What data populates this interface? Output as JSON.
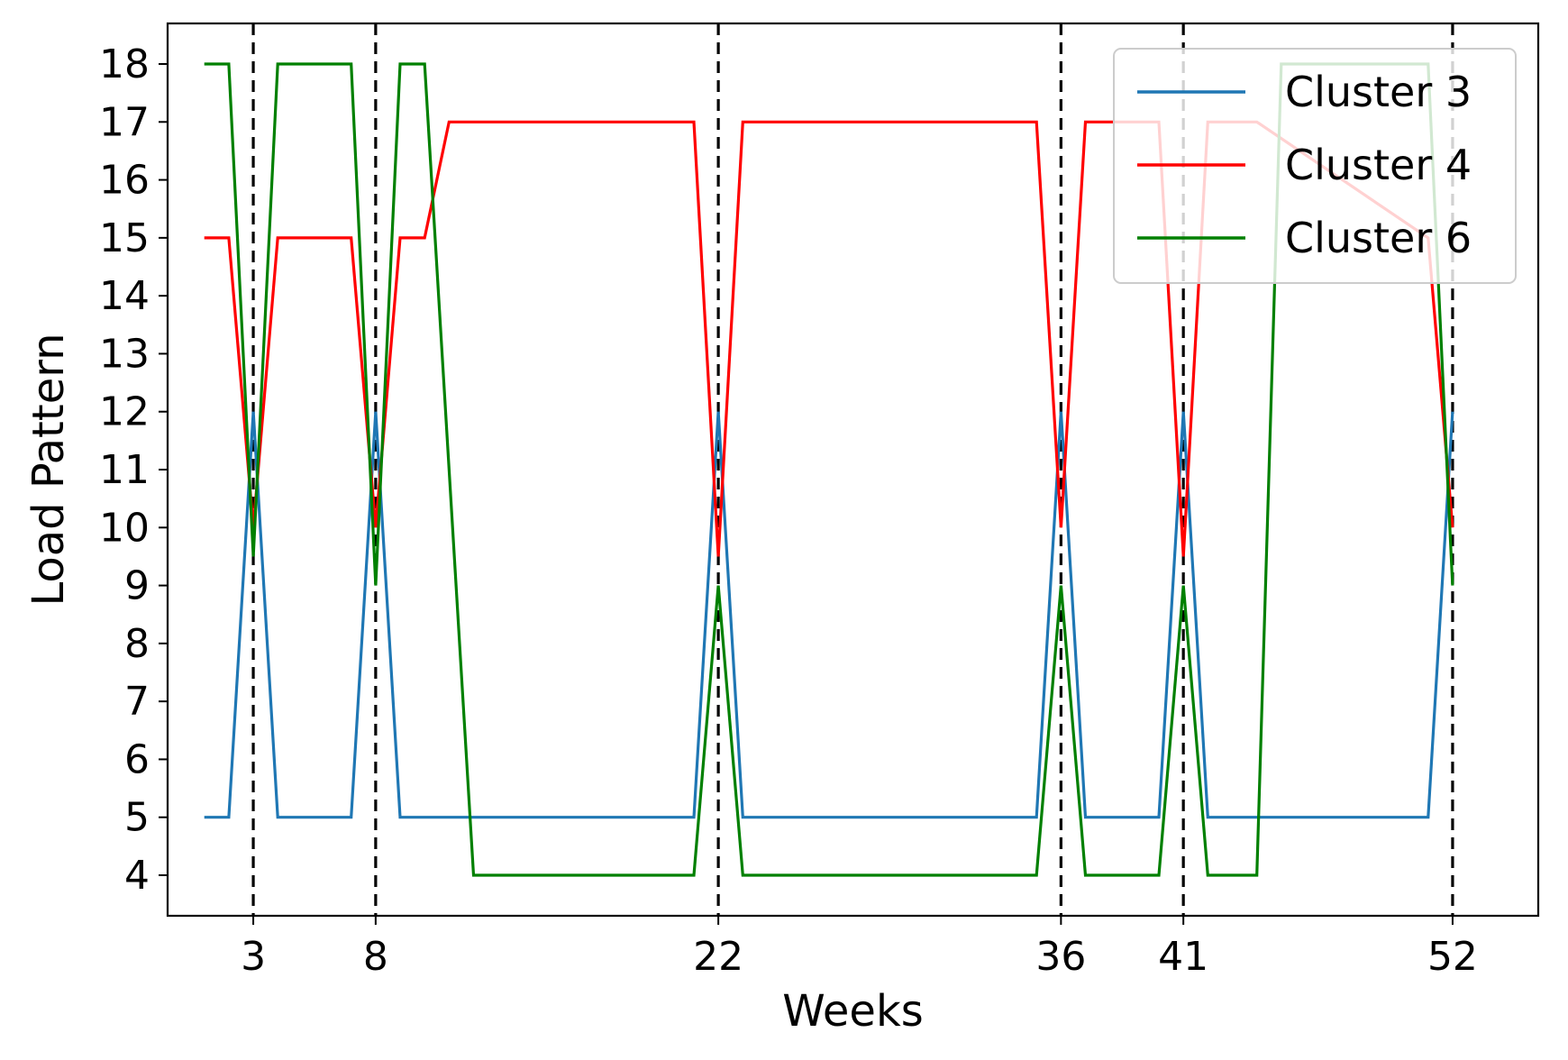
{
  "chart_data": {
    "type": "line",
    "title": "",
    "xlabel": "Weeks",
    "ylabel": "Load Pattern",
    "xlim": [
      -0.5,
      55.5
    ],
    "ylim": [
      3.3,
      18.7
    ],
    "x_ticks": [
      3,
      8,
      22,
      36,
      41,
      52
    ],
    "y_ticks": [
      4,
      5,
      6,
      7,
      8,
      9,
      10,
      11,
      12,
      13,
      14,
      15,
      16,
      17,
      18
    ],
    "vlines": [
      3,
      8,
      22,
      36,
      41,
      52
    ],
    "legend_position": "top-right",
    "grid": false,
    "series": [
      {
        "name": "Cluster 3",
        "color": "#1f77b4",
        "x": [
          1,
          2,
          3,
          4,
          7,
          8,
          9,
          21,
          22,
          23,
          35,
          36,
          37,
          40,
          41,
          42,
          51,
          52
        ],
        "y": [
          5,
          5,
          12,
          5,
          5,
          12,
          5,
          5,
          12,
          5,
          5,
          12,
          5,
          5,
          12,
          5,
          5,
          12
        ]
      },
      {
        "name": "Cluster 4",
        "color": "#ff0000",
        "x": [
          1,
          2,
          3,
          4,
          7,
          8,
          9,
          10,
          11,
          21,
          22,
          23,
          35,
          36,
          37,
          40,
          41,
          42,
          44,
          51,
          52
        ],
        "y": [
          15,
          15,
          10,
          15,
          15,
          10,
          15,
          15,
          17,
          17,
          9.5,
          17,
          17,
          10,
          17,
          17,
          9.5,
          17,
          17,
          15,
          10
        ]
      },
      {
        "name": "Cluster 6",
        "color": "#008000",
        "x": [
          1,
          2,
          3,
          4,
          7,
          8,
          9,
          10,
          12,
          21,
          22,
          23,
          35,
          36,
          37,
          40,
          41,
          42,
          44,
          45,
          51,
          52
        ],
        "y": [
          18,
          18,
          9.5,
          18,
          18,
          9,
          18,
          18,
          4,
          4,
          9,
          4,
          4,
          9,
          4,
          4,
          9,
          4,
          4,
          18,
          18,
          9
        ]
      }
    ]
  }
}
